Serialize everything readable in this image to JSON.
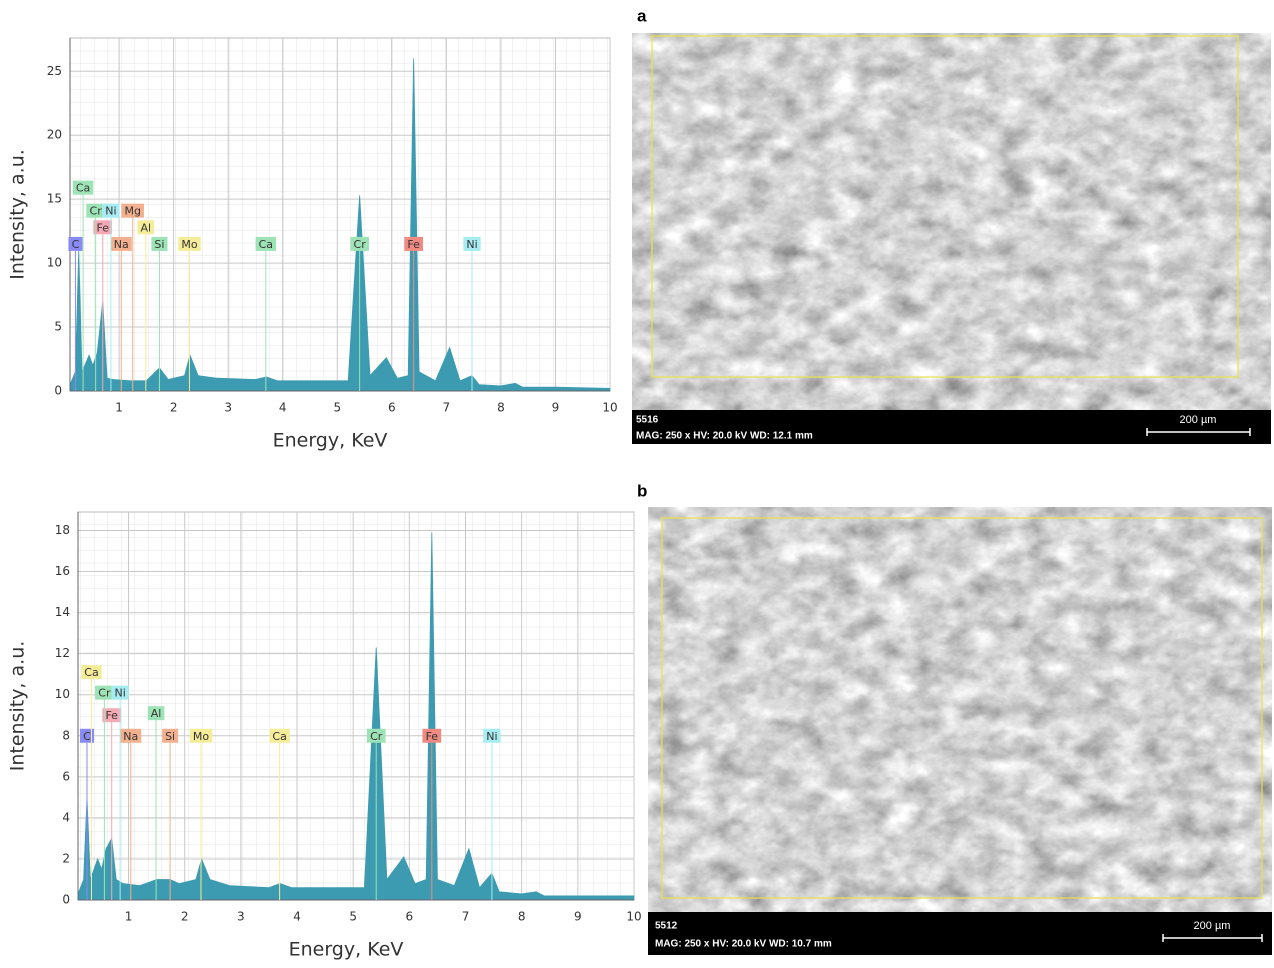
{
  "chart_data": [
    {
      "type": "area",
      "xlabel": "Energy,  KeV",
      "ylabel": "Intensity,  a.u.",
      "color": "#3c9bb1",
      "grid": true,
      "x": [
        0.1,
        0.2,
        0.26,
        0.32,
        0.45,
        0.52,
        0.6,
        0.7,
        0.78,
        0.9,
        1.2,
        1.5,
        1.74,
        1.9,
        2.2,
        2.3,
        2.45,
        2.8,
        3.5,
        3.7,
        3.9,
        4.5,
        5.2,
        5.41,
        5.6,
        5.9,
        6.1,
        6.3,
        6.4,
        6.5,
        6.8,
        7.06,
        7.25,
        7.47,
        7.6,
        8.0,
        8.26,
        8.4,
        9.0,
        10.0
      ],
      "values": [
        0.5,
        1.5,
        11,
        1.5,
        2.8,
        2,
        3,
        7,
        1,
        0.9,
        0.8,
        0.8,
        1.8,
        0.9,
        1.2,
        2.8,
        1.2,
        1,
        0.9,
        1.1,
        0.8,
        0.8,
        0.8,
        15.3,
        1.2,
        2.6,
        1,
        1.2,
        26,
        1.5,
        0.8,
        3.4,
        0.8,
        1.2,
        0.5,
        0.4,
        0.6,
        0.3,
        0.3,
        0.2
      ],
      "xlim": [
        0.1,
        10
      ],
      "xticks": [
        1,
        2,
        3,
        4,
        5,
        6,
        7,
        8,
        9,
        10
      ],
      "ylim": [
        0,
        27.6
      ],
      "yticks": [
        0,
        5,
        10,
        15,
        20,
        25
      ],
      "annotations": [
        {
          "text": "C",
          "x": 0.2,
          "y": 11.5,
          "color": "#8a8af5"
        },
        {
          "text": "Na",
          "x": 1.04,
          "y": 11.5,
          "color": "#f3b08e"
        },
        {
          "text": "Si",
          "x": 1.74,
          "y": 11.5,
          "color": "#9de3b5"
        },
        {
          "text": "Mo",
          "x": 2.29,
          "y": 11.5,
          "color": "#f5ec9a"
        },
        {
          "text": "Ca",
          "x": 3.69,
          "y": 11.5,
          "color": "#9de3b5"
        },
        {
          "text": "Cr",
          "x": 5.41,
          "y": 11.5,
          "color": "#9de3b5"
        },
        {
          "text": "Fe",
          "x": 6.4,
          "y": 11.5,
          "color": "#f08a82"
        },
        {
          "text": "Ni",
          "x": 7.47,
          "y": 11.5,
          "color": "#a6ecf2"
        },
        {
          "text": "Fe",
          "x": 0.7,
          "y": 12.8,
          "color": "#f4a9b4"
        },
        {
          "text": "Al",
          "x": 1.49,
          "y": 12.8,
          "color": "#f5ec9a"
        },
        {
          "text": "Cr",
          "x": 0.57,
          "y": 14.1,
          "color": "#9de3b5"
        },
        {
          "text": "Ni",
          "x": 0.85,
          "y": 14.1,
          "color": "#a6ecf2"
        },
        {
          "text": "Mg",
          "x": 1.25,
          "y": 14.1,
          "color": "#f3b08e"
        },
        {
          "text": "Ca",
          "x": 0.34,
          "y": 15.9,
          "color": "#9de3b5"
        }
      ]
    },
    {
      "type": "area",
      "xlabel": "Energy,  KeV",
      "ylabel": "Intensity,  a.u.",
      "color": "#3c9bb1",
      "grid": true,
      "x": [
        0.1,
        0.2,
        0.26,
        0.32,
        0.45,
        0.52,
        0.6,
        0.7,
        0.78,
        0.9,
        1.2,
        1.5,
        1.74,
        1.9,
        2.2,
        2.3,
        2.45,
        2.8,
        3.5,
        3.7,
        3.9,
        4.5,
        5.2,
        5.41,
        5.6,
        5.9,
        6.1,
        6.3,
        6.4,
        6.5,
        6.8,
        7.06,
        7.25,
        7.47,
        7.6,
        8.0,
        8.26,
        8.4,
        9.0,
        10.0
      ],
      "values": [
        0.3,
        1,
        5,
        1,
        2,
        1.5,
        2.5,
        3,
        1,
        0.8,
        0.7,
        1,
        1,
        0.8,
        1,
        2,
        1,
        0.7,
        0.6,
        0.8,
        0.6,
        0.6,
        0.6,
        12.3,
        1,
        2.1,
        0.8,
        1,
        17.9,
        1,
        0.7,
        2.5,
        0.6,
        1.3,
        0.4,
        0.3,
        0.4,
        0.2,
        0.2,
        0.2
      ],
      "xlim": [
        0.1,
        10
      ],
      "xticks": [
        1,
        2,
        3,
        4,
        5,
        6,
        7,
        8,
        9,
        10
      ],
      "ylim": [
        0,
        18.9
      ],
      "yticks": [
        0,
        2,
        4,
        6,
        8,
        10,
        12,
        14,
        16,
        18
      ],
      "annotations": [
        {
          "text": "C",
          "x": 0.26,
          "y": 8,
          "color": "#8a8af5"
        },
        {
          "text": "Na",
          "x": 1.04,
          "y": 8,
          "color": "#f3b08e"
        },
        {
          "text": "Si",
          "x": 1.74,
          "y": 8,
          "color": "#f3b08e"
        },
        {
          "text": "Mo",
          "x": 2.29,
          "y": 8,
          "color": "#f5ec9a"
        },
        {
          "text": "Ca",
          "x": 3.69,
          "y": 8,
          "color": "#f5ec9a"
        },
        {
          "text": "Cr",
          "x": 5.41,
          "y": 8,
          "color": "#9de3b5"
        },
        {
          "text": "Fe",
          "x": 6.4,
          "y": 8,
          "color": "#f08a82"
        },
        {
          "text": "Ni",
          "x": 7.47,
          "y": 8,
          "color": "#a6ecf2"
        },
        {
          "text": "Fe",
          "x": 0.7,
          "y": 9,
          "color": "#f4a9b4"
        },
        {
          "text": "Al",
          "x": 1.49,
          "y": 9.1,
          "color": "#9de3b5"
        },
        {
          "text": "Cr",
          "x": 0.57,
          "y": 10.1,
          "color": "#9de3b5"
        },
        {
          "text": "Ni",
          "x": 0.85,
          "y": 10.1,
          "color": "#a6ecf2"
        },
        {
          "text": "Ca",
          "x": 0.34,
          "y": 11.1,
          "color": "#f5ec9a"
        }
      ]
    }
  ],
  "images": [
    {
      "label": "a",
      "id": "5516",
      "info": "MAG: 250 x HV: 20.0 kV WD: 12.1 mm",
      "scale": "200 µm"
    },
    {
      "label": "b",
      "id": "5512",
      "info": "MAG: 250 x HV: 20.0 kV WD: 10.7 mm",
      "scale": "200 µm"
    }
  ]
}
